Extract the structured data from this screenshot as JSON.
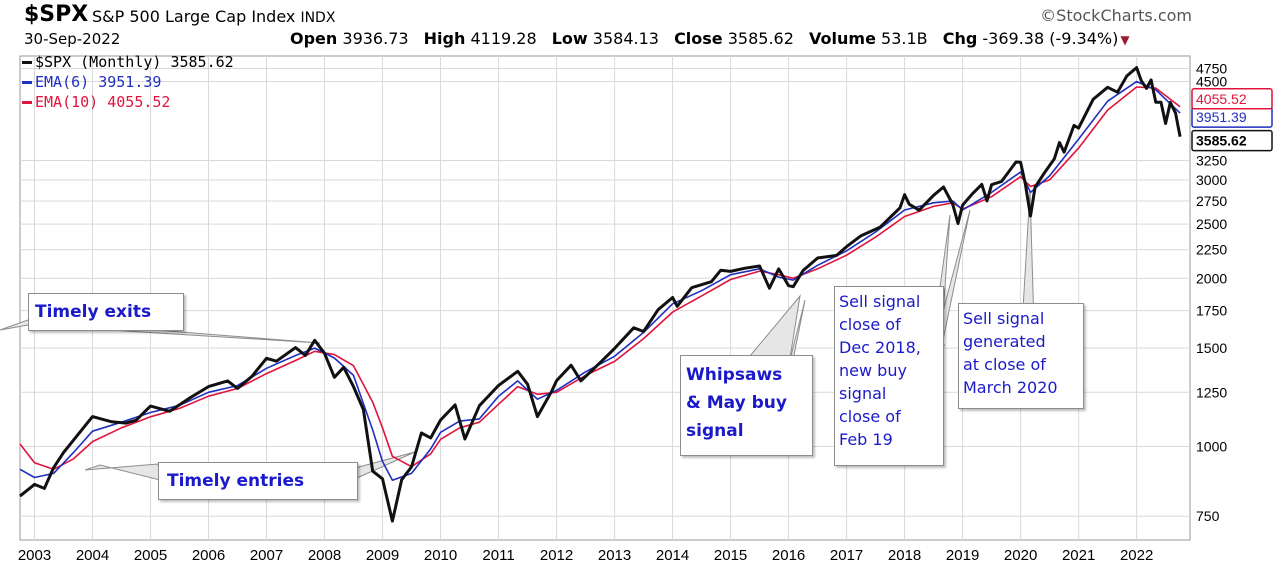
{
  "header": {
    "symbol": "$SPX",
    "name": "S&P 500 Large Cap Index",
    "exchange": "INDX",
    "watermark": "©StockCharts.com",
    "date": "30-Sep-2022",
    "open_label": "Open",
    "open": "3936.73",
    "high_label": "High",
    "high": "4119.28",
    "low_label": "Low",
    "low": "3584.13",
    "close_label": "Close",
    "close": "3585.62",
    "volume_label": "Volume",
    "volume": "53.1B",
    "chg_label": "Chg",
    "chg": "-369.38 (-9.34%)"
  },
  "legend": [
    {
      "label": "$SPX (Monthly) 3585.62",
      "color": "#111111"
    },
    {
      "label": "EMA(6) 3951.39",
      "color": "#1f2fbf"
    },
    {
      "label": "EMA(10) 4055.52",
      "color": "#e0143c"
    }
  ],
  "price_tags": [
    {
      "value": "3951.39",
      "color": "#1f2fbf",
      "price": 3951.39
    },
    {
      "value": "3585.62",
      "color": "#111111",
      "price": 3585.62
    },
    {
      "value": "4055.52",
      "color": "#e0143c",
      "price": 4055.52
    }
  ],
  "annotations": {
    "timely_exits": "Timely exits",
    "timely_entries": "Timely entries",
    "whipsaws_l1": "Whipsaws",
    "whipsaws_l2": "& May buy",
    "whipsaws_l3": "signal",
    "sell2018_l1": "Sell signal",
    "sell2018_l2": "close of",
    "sell2018_l3": "Dec 2018,",
    "sell2018_l4": "new buy",
    "sell2018_l5": "signal",
    "sell2018_l6": "close of",
    "sell2018_l7": "Feb 19",
    "sell2020_l1": "Sell signal",
    "sell2020_l2": "generated",
    "sell2020_l3": "at close of",
    "sell2020_l4": "March 2020"
  },
  "colors": {
    "price": "#111111",
    "ema6": "#1f2fbf",
    "ema10": "#e0143c",
    "grid": "#d9d9d9",
    "annotation_text": "#1a1acb"
  },
  "chart_data": {
    "type": "line",
    "title": "$SPX S&P 500 Large Cap Index INDX",
    "scale": "log",
    "ylim": [
      680,
      5000
    ],
    "xlim": [
      2002.75,
      2022.92
    ],
    "y_ticks": [
      750,
      1000,
      1250,
      1500,
      1750,
      2000,
      2250,
      2500,
      2750,
      3000,
      3250,
      4500,
      4750
    ],
    "x_ticks": [
      "2003",
      "2004",
      "2005",
      "2006",
      "2007",
      "2008",
      "2009",
      "2010",
      "2011",
      "2012",
      "2013",
      "2014",
      "2015",
      "2016",
      "2017",
      "2018",
      "2019",
      "2020",
      "2021",
      "2022"
    ],
    "grid": true,
    "legend_position": "top-left",
    "series": [
      {
        "name": "$SPX (Monthly) 3585.62",
        "points": [
          [
            2002.75,
            815
          ],
          [
            2003.0,
            855
          ],
          [
            2003.17,
            841
          ],
          [
            2003.33,
            916
          ],
          [
            2003.5,
            975
          ],
          [
            2003.75,
            1050
          ],
          [
            2004.0,
            1131
          ],
          [
            2004.33,
            1107
          ],
          [
            2004.58,
            1101
          ],
          [
            2004.75,
            1114
          ],
          [
            2005.0,
            1181
          ],
          [
            2005.33,
            1156
          ],
          [
            2005.67,
            1220
          ],
          [
            2006.0,
            1280
          ],
          [
            2006.33,
            1310
          ],
          [
            2006.5,
            1270
          ],
          [
            2006.75,
            1335
          ],
          [
            2007.0,
            1438
          ],
          [
            2007.17,
            1421
          ],
          [
            2007.5,
            1503
          ],
          [
            2007.67,
            1455
          ],
          [
            2007.83,
            1549
          ],
          [
            2008.0,
            1468
          ],
          [
            2008.17,
            1330
          ],
          [
            2008.33,
            1386
          ],
          [
            2008.5,
            1280
          ],
          [
            2008.67,
            1164
          ],
          [
            2008.83,
            903
          ],
          [
            2009.0,
            875
          ],
          [
            2009.17,
            735
          ],
          [
            2009.33,
            872
          ],
          [
            2009.5,
            919
          ],
          [
            2009.67,
            1057
          ],
          [
            2009.83,
            1036
          ],
          [
            2010.0,
            1115
          ],
          [
            2010.25,
            1187
          ],
          [
            2010.42,
            1031
          ],
          [
            2010.67,
            1183
          ],
          [
            2011.0,
            1286
          ],
          [
            2011.33,
            1363
          ],
          [
            2011.5,
            1292
          ],
          [
            2011.67,
            1131
          ],
          [
            2011.92,
            1258
          ],
          [
            2012.0,
            1312
          ],
          [
            2012.25,
            1398
          ],
          [
            2012.42,
            1310
          ],
          [
            2012.75,
            1412
          ],
          [
            2013.0,
            1498
          ],
          [
            2013.33,
            1631
          ],
          [
            2013.5,
            1606
          ],
          [
            2013.75,
            1757
          ],
          [
            2014.0,
            1848
          ],
          [
            2014.08,
            1782
          ],
          [
            2014.33,
            1924
          ],
          [
            2014.67,
            1972
          ],
          [
            2014.83,
            2067
          ],
          [
            2015.0,
            2058
          ],
          [
            2015.25,
            2085
          ],
          [
            2015.5,
            2104
          ],
          [
            2015.67,
            1920
          ],
          [
            2015.83,
            2079
          ],
          [
            2016.0,
            1940
          ],
          [
            2016.08,
            1932
          ],
          [
            2016.25,
            2065
          ],
          [
            2016.5,
            2174
          ],
          [
            2016.83,
            2198
          ],
          [
            2017.0,
            2279
          ],
          [
            2017.25,
            2384
          ],
          [
            2017.58,
            2470
          ],
          [
            2017.92,
            2674
          ],
          [
            2018.0,
            2823
          ],
          [
            2018.08,
            2714
          ],
          [
            2018.25,
            2648
          ],
          [
            2018.5,
            2816
          ],
          [
            2018.67,
            2914
          ],
          [
            2018.83,
            2711
          ],
          [
            2018.92,
            2507
          ],
          [
            2019.0,
            2704
          ],
          [
            2019.17,
            2834
          ],
          [
            2019.33,
            2945
          ],
          [
            2019.42,
            2752
          ],
          [
            2019.5,
            2942
          ],
          [
            2019.67,
            2980
          ],
          [
            2019.92,
            3230
          ],
          [
            2020.0,
            3226
          ],
          [
            2020.08,
            2954
          ],
          [
            2020.17,
            2585
          ],
          [
            2020.25,
            2912
          ],
          [
            2020.42,
            3100
          ],
          [
            2020.58,
            3271
          ],
          [
            2020.67,
            3500
          ],
          [
            2020.75,
            3363
          ],
          [
            2020.92,
            3756
          ],
          [
            2021.0,
            3714
          ],
          [
            2021.25,
            4181
          ],
          [
            2021.5,
            4395
          ],
          [
            2021.67,
            4307
          ],
          [
            2021.83,
            4605
          ],
          [
            2022.0,
            4766
          ],
          [
            2022.08,
            4516
          ],
          [
            2022.17,
            4374
          ],
          [
            2022.25,
            4530
          ],
          [
            2022.33,
            4132
          ],
          [
            2022.42,
            4132
          ],
          [
            2022.5,
            3785
          ],
          [
            2022.58,
            4130
          ],
          [
            2022.67,
            3955
          ],
          [
            2022.75,
            3585
          ]
        ]
      },
      {
        "name": "EMA(6) 3951.39",
        "points": [
          [
            2002.75,
            910
          ],
          [
            2003.0,
            880
          ],
          [
            2003.33,
            895
          ],
          [
            2003.67,
            975
          ],
          [
            2004.0,
            1065
          ],
          [
            2004.5,
            1105
          ],
          [
            2005.0,
            1150
          ],
          [
            2005.5,
            1185
          ],
          [
            2006.0,
            1250
          ],
          [
            2006.5,
            1285
          ],
          [
            2007.0,
            1380
          ],
          [
            2007.5,
            1455
          ],
          [
            2007.83,
            1500
          ],
          [
            2008.17,
            1440
          ],
          [
            2008.5,
            1340
          ],
          [
            2008.83,
            1070
          ],
          [
            2009.0,
            940
          ],
          [
            2009.17,
            870
          ],
          [
            2009.5,
            895
          ],
          [
            2009.83,
            990
          ],
          [
            2010.0,
            1060
          ],
          [
            2010.33,
            1110
          ],
          [
            2010.67,
            1120
          ],
          [
            2011.0,
            1230
          ],
          [
            2011.33,
            1310
          ],
          [
            2011.67,
            1215
          ],
          [
            2012.0,
            1260
          ],
          [
            2012.5,
            1360
          ],
          [
            2013.0,
            1450
          ],
          [
            2013.5,
            1600
          ],
          [
            2014.0,
            1800
          ],
          [
            2014.5,
            1900
          ],
          [
            2015.0,
            2030
          ],
          [
            2015.5,
            2080
          ],
          [
            2015.83,
            2010
          ],
          [
            2016.08,
            1985
          ],
          [
            2016.5,
            2110
          ],
          [
            2017.0,
            2240
          ],
          [
            2017.5,
            2420
          ],
          [
            2018.0,
            2650
          ],
          [
            2018.5,
            2730
          ],
          [
            2018.83,
            2750
          ],
          [
            2019.0,
            2650
          ],
          [
            2019.5,
            2850
          ],
          [
            2020.0,
            3100
          ],
          [
            2020.17,
            2850
          ],
          [
            2020.5,
            3050
          ],
          [
            2021.0,
            3550
          ],
          [
            2021.5,
            4150
          ],
          [
            2022.0,
            4500
          ],
          [
            2022.33,
            4350
          ],
          [
            2022.75,
            3951
          ]
        ]
      },
      {
        "name": "EMA(10) 4055.52",
        "points": [
          [
            2002.75,
            1010
          ],
          [
            2003.0,
            935
          ],
          [
            2003.33,
            910
          ],
          [
            2003.67,
            950
          ],
          [
            2004.0,
            1020
          ],
          [
            2004.5,
            1080
          ],
          [
            2005.0,
            1130
          ],
          [
            2005.5,
            1170
          ],
          [
            2006.0,
            1230
          ],
          [
            2006.5,
            1270
          ],
          [
            2007.0,
            1350
          ],
          [
            2007.5,
            1425
          ],
          [
            2007.83,
            1480
          ],
          [
            2008.17,
            1460
          ],
          [
            2008.5,
            1395
          ],
          [
            2008.83,
            1200
          ],
          [
            2009.0,
            1080
          ],
          [
            2009.17,
            960
          ],
          [
            2009.5,
            920
          ],
          [
            2009.83,
            970
          ],
          [
            2010.0,
            1030
          ],
          [
            2010.33,
            1080
          ],
          [
            2010.67,
            1105
          ],
          [
            2011.0,
            1190
          ],
          [
            2011.33,
            1280
          ],
          [
            2011.67,
            1240
          ],
          [
            2012.0,
            1250
          ],
          [
            2012.5,
            1340
          ],
          [
            2013.0,
            1420
          ],
          [
            2013.5,
            1560
          ],
          [
            2014.0,
            1740
          ],
          [
            2014.5,
            1860
          ],
          [
            2015.0,
            1990
          ],
          [
            2015.5,
            2060
          ],
          [
            2015.83,
            2030
          ],
          [
            2016.08,
            2000
          ],
          [
            2016.5,
            2080
          ],
          [
            2017.0,
            2200
          ],
          [
            2017.5,
            2370
          ],
          [
            2018.0,
            2580
          ],
          [
            2018.5,
            2690
          ],
          [
            2018.83,
            2730
          ],
          [
            2019.0,
            2660
          ],
          [
            2019.5,
            2800
          ],
          [
            2020.0,
            3040
          ],
          [
            2020.17,
            2920
          ],
          [
            2020.5,
            3000
          ],
          [
            2021.0,
            3420
          ],
          [
            2021.5,
            4000
          ],
          [
            2022.0,
            4400
          ],
          [
            2022.33,
            4380
          ],
          [
            2022.75,
            4055
          ]
        ]
      }
    ]
  }
}
